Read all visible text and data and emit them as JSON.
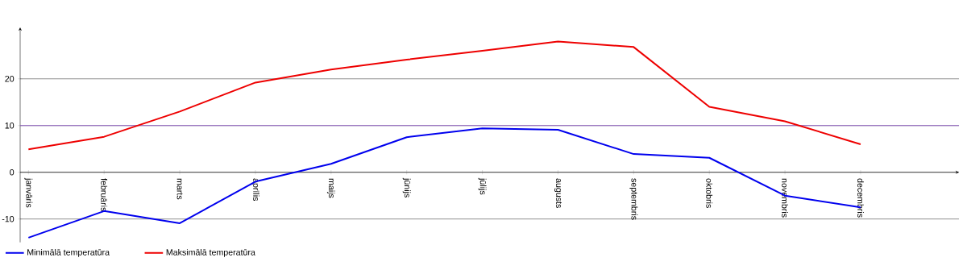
{
  "chart_data": {
    "type": "line",
    "categories": [
      "janvāris",
      "februāris",
      "marts",
      "aprīlis",
      "maijs",
      "jūnijs",
      "jūlijs",
      "augusts",
      "septembris",
      "oktobris",
      "novembris",
      "decembris"
    ],
    "series": [
      {
        "name": "Minimālā temperatūra",
        "color": "#0000ee",
        "values": [
          -14,
          -8.3,
          -10.9,
          -2,
          1.8,
          7.5,
          9.4,
          9.1,
          3.9,
          3.1,
          -5,
          -7.5
        ]
      },
      {
        "name": "Maksimālā temperatūra",
        "color": "#ee0000",
        "values": [
          4.9,
          7.6,
          13,
          19.2,
          22,
          24.1,
          26,
          28,
          26.8,
          14,
          10.9,
          6
        ]
      }
    ],
    "ylim": [
      -15,
      31
    ],
    "yticks": [
      -10,
      0,
      10,
      20
    ],
    "grid": "y",
    "ref_lines": [
      {
        "axis": "y",
        "value": 10,
        "color": "#9966cc"
      }
    ],
    "legend": "bottom left",
    "marker": "none",
    "line_style": "solid"
  }
}
